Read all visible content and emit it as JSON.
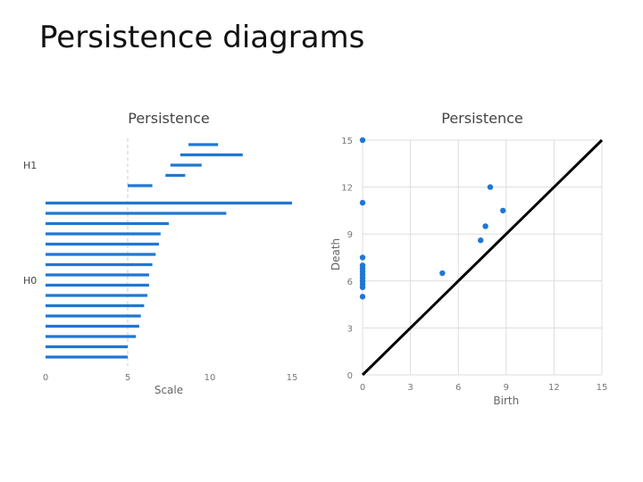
{
  "slide": {
    "title": "Persistence diagrams"
  },
  "colors": {
    "mark": "#1f77d4",
    "diagonal": "#000000",
    "grid": "#dddddd",
    "axis": "#999999"
  },
  "chart_data": [
    {
      "type": "bar",
      "title": "Persistence",
      "xlabel": "Scale",
      "ylabel": "",
      "xlim": [
        0,
        15
      ],
      "xticks": [
        0,
        5,
        10,
        15
      ],
      "groups": [
        {
          "name": "H1",
          "bars": [
            {
              "start": 8.7,
              "end": 10.5
            },
            {
              "start": 8.2,
              "end": 12.0
            },
            {
              "start": 7.6,
              "end": 9.5
            },
            {
              "start": 7.3,
              "end": 8.5
            },
            {
              "start": 5.0,
              "end": 6.5
            }
          ]
        },
        {
          "name": "H0",
          "bars": [
            {
              "start": 0,
              "end": 15.0
            },
            {
              "start": 0,
              "end": 11.0
            },
            {
              "start": 0,
              "end": 7.5
            },
            {
              "start": 0,
              "end": 7.0
            },
            {
              "start": 0,
              "end": 6.9
            },
            {
              "start": 0,
              "end": 6.7
            },
            {
              "start": 0,
              "end": 6.5
            },
            {
              "start": 0,
              "end": 6.3
            },
            {
              "start": 0,
              "end": 6.3
            },
            {
              "start": 0,
              "end": 6.2
            },
            {
              "start": 0,
              "end": 6.0
            },
            {
              "start": 0,
              "end": 5.8
            },
            {
              "start": 0,
              "end": 5.7
            },
            {
              "start": 0,
              "end": 5.5
            },
            {
              "start": 0,
              "end": 5.0
            },
            {
              "start": 0,
              "end": 5.0
            }
          ]
        }
      ]
    },
    {
      "type": "scatter",
      "title": "Persistence",
      "xlabel": "Birth",
      "ylabel": "Death",
      "xlim": [
        0,
        15
      ],
      "ylim": [
        0,
        15
      ],
      "xticks": [
        0,
        3,
        6,
        9,
        12,
        15
      ],
      "yticks": [
        0,
        3,
        6,
        9,
        12,
        15
      ],
      "grid": true,
      "diagonal": true,
      "points": [
        {
          "x": 0,
          "y": 15.0
        },
        {
          "x": 0,
          "y": 11.0
        },
        {
          "x": 0,
          "y": 7.5
        },
        {
          "x": 0,
          "y": 7.0
        },
        {
          "x": 0,
          "y": 6.8
        },
        {
          "x": 0,
          "y": 6.6
        },
        {
          "x": 0,
          "y": 6.4
        },
        {
          "x": 0,
          "y": 6.2
        },
        {
          "x": 0,
          "y": 6.0
        },
        {
          "x": 0,
          "y": 5.8
        },
        {
          "x": 0,
          "y": 5.6
        },
        {
          "x": 0,
          "y": 5.0
        },
        {
          "x": 8.0,
          "y": 12.0
        },
        {
          "x": 8.8,
          "y": 10.5
        },
        {
          "x": 7.7,
          "y": 9.5
        },
        {
          "x": 7.4,
          "y": 8.6
        },
        {
          "x": 5.0,
          "y": 6.5
        }
      ]
    }
  ]
}
